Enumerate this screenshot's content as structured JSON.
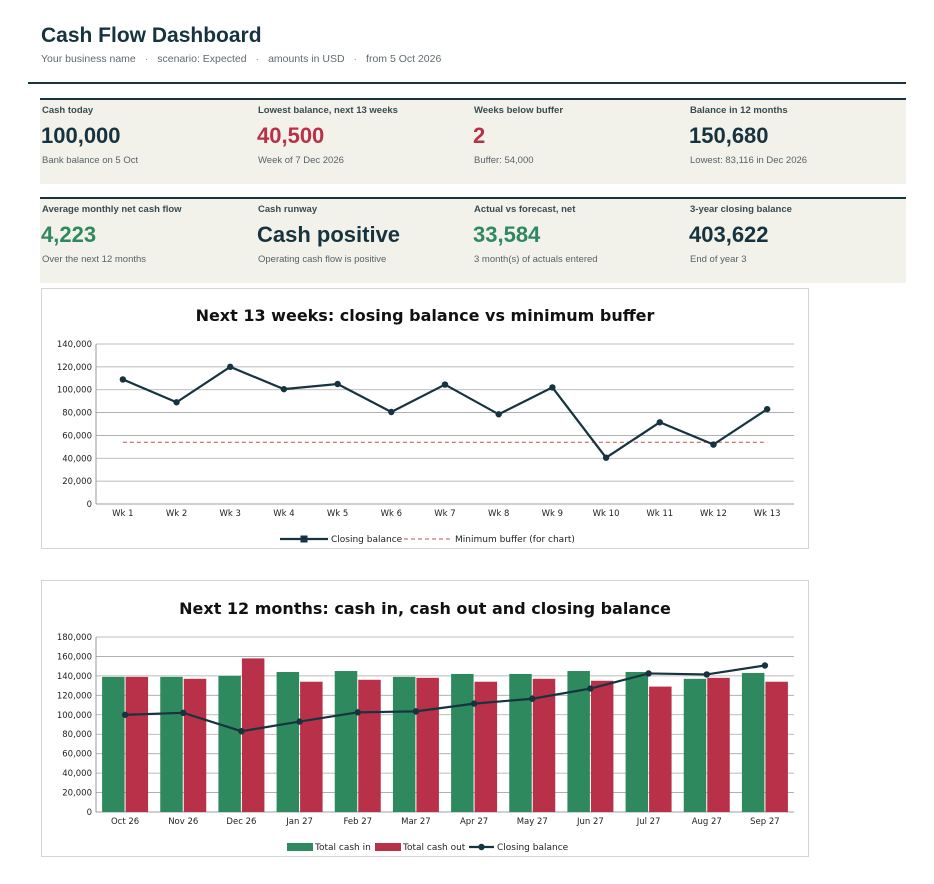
{
  "header": {
    "title": "Cash Flow Dashboard",
    "business": "Your business name",
    "scenario": "scenario: Expected",
    "currency": "amounts in USD",
    "from": "from 5 Oct 2026"
  },
  "kpis_row1": [
    {
      "label": "Cash today",
      "value": "100,000",
      "note": "Bank balance on 5 Oct",
      "tone": "navy"
    },
    {
      "label": "Lowest balance, next 13 weeks",
      "value": "40,500",
      "note": "Week of 7 Dec 2026",
      "tone": "red"
    },
    {
      "label": "Weeks below buffer",
      "value": "2",
      "note": "Buffer: 54,000",
      "tone": "red"
    },
    {
      "label": "Balance in 12 months",
      "value": "150,680",
      "note": "Lowest: 83,116 in Dec 2026",
      "tone": "navy"
    }
  ],
  "kpis_row2": [
    {
      "label": "Average monthly net cash flow",
      "value": "4,223",
      "note": "Over the next 12 months",
      "tone": "green"
    },
    {
      "label": "Cash runway",
      "value": "Cash positive",
      "note": "Operating cash flow is positive",
      "tone": "navy"
    },
    {
      "label": "Actual vs forecast, net",
      "value": "33,584",
      "note": "3 month(s) of actuals entered",
      "tone": "green"
    },
    {
      "label": "3-year closing balance",
      "value": "403,622",
      "note": "End of year 3",
      "tone": "navy"
    }
  ],
  "colors": {
    "navy": "#17333f",
    "red": "#b83148",
    "green": "#2e8a5e",
    "buffer": "#c0504d"
  },
  "chart_data": [
    {
      "type": "line",
      "title": "Next 13 weeks: closing balance vs minimum buffer",
      "categories": [
        "Wk 1",
        "Wk 2",
        "Wk 3",
        "Wk 4",
        "Wk 5",
        "Wk 6",
        "Wk 7",
        "Wk 8",
        "Wk 9",
        "Wk 10",
        "Wk 11",
        "Wk 12",
        "Wk 13"
      ],
      "ylim": [
        0,
        140000
      ],
      "yticks": [
        "0",
        "20,000",
        "40,000",
        "60,000",
        "80,000",
        "100,000",
        "120,000",
        "140,000"
      ],
      "grid": true,
      "legend_position": "bottom",
      "series": [
        {
          "name": "Closing balance",
          "color": "#17333f",
          "values": [
            109000,
            89000,
            120000,
            100500,
            105000,
            80500,
            104500,
            78500,
            102000,
            40500,
            71500,
            52000,
            83000
          ]
        },
        {
          "name": "Minimum buffer (for chart)",
          "color": "#c0504d",
          "dashed": true,
          "values": [
            54000,
            54000,
            54000,
            54000,
            54000,
            54000,
            54000,
            54000,
            54000,
            54000,
            54000,
            54000,
            54000
          ]
        }
      ]
    },
    {
      "type": "bar",
      "title": "Next 12 months: cash in, cash out and closing balance",
      "categories": [
        "Oct 26",
        "Nov 26",
        "Dec 26",
        "Jan 27",
        "Feb 27",
        "Mar 27",
        "Apr 27",
        "May 27",
        "Jun 27",
        "Jul 27",
        "Aug 27",
        "Sep 27"
      ],
      "ylim": [
        0,
        180000
      ],
      "yticks": [
        "0",
        "20,000",
        "40,000",
        "60,000",
        "80,000",
        "100,000",
        "120,000",
        "140,000",
        "160,000",
        "180,000"
      ],
      "grid": true,
      "legend_position": "bottom",
      "series": [
        {
          "name": "Total cash in",
          "color": "#2e8a5e",
          "values": [
            139000,
            139000,
            140000,
            144000,
            145000,
            139000,
            142000,
            142000,
            145000,
            144000,
            137000,
            143000
          ]
        },
        {
          "name": "Total cash out",
          "color": "#b83148",
          "values": [
            139000,
            137000,
            158000,
            134000,
            136000,
            138000,
            134000,
            137000,
            135000,
            129000,
            138000,
            134000
          ]
        },
        {
          "name": "Closing balance",
          "color": "#17333f",
          "line": true,
          "values": [
            100000,
            102000,
            83116,
            93000,
            102500,
            103500,
            111500,
            116500,
            127000,
            142500,
            141500,
            150680
          ]
        }
      ]
    }
  ]
}
